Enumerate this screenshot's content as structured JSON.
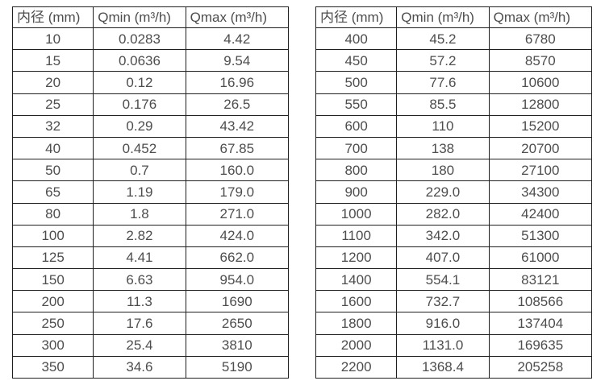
{
  "colors": {
    "background": "#ffffff",
    "border": "#1f1f1f",
    "text": "#4d4d4d"
  },
  "tables": [
    {
      "id": "flow-rate-table-small-diameters",
      "headers": [
        "内径 (mm)",
        "Qmin (m³/h)",
        "Qmax (m³/h)"
      ],
      "rows": [
        [
          "10",
          "0.0283",
          "4.42"
        ],
        [
          "15",
          "0.0636",
          "9.54"
        ],
        [
          "20",
          "0.12",
          "16.96"
        ],
        [
          "25",
          "0.176",
          "26.5"
        ],
        [
          "32",
          "0.29",
          "43.42"
        ],
        [
          "40",
          "0.452",
          "67.85"
        ],
        [
          "50",
          "0.7",
          "160.0"
        ],
        [
          "65",
          "1.19",
          "179.0"
        ],
        [
          "80",
          "1.8",
          "271.0"
        ],
        [
          "100",
          "2.82",
          "424.0"
        ],
        [
          "125",
          "4.41",
          "662.0"
        ],
        [
          "150",
          "6.63",
          "954.0"
        ],
        [
          "200",
          "11.3",
          "1690"
        ],
        [
          "250",
          "17.6",
          "2650"
        ],
        [
          "300",
          "25.4",
          "3810"
        ],
        [
          "350",
          "34.6",
          "5190"
        ]
      ]
    },
    {
      "id": "flow-rate-table-large-diameters",
      "headers": [
        "内径 (mm)",
        "Qmin (m³/h)",
        "Qmax (m³/h)"
      ],
      "rows": [
        [
          "400",
          "45.2",
          "6780"
        ],
        [
          "450",
          "57.2",
          "8570"
        ],
        [
          "500",
          "77.6",
          "10600"
        ],
        [
          "550",
          "85.5",
          "12800"
        ],
        [
          "600",
          "110",
          "15200"
        ],
        [
          "700",
          "138",
          "20700"
        ],
        [
          "800",
          "180",
          "27100"
        ],
        [
          "900",
          "229.0",
          "34300"
        ],
        [
          "1000",
          "282.0",
          "42400"
        ],
        [
          "1100",
          "342.0",
          "51300"
        ],
        [
          "1200",
          "407.0",
          "61000"
        ],
        [
          "1400",
          "554.1",
          "83121"
        ],
        [
          "1600",
          "732.7",
          "108566"
        ],
        [
          "1800",
          "916.0",
          "137404"
        ],
        [
          "2000",
          "1131.0",
          "169635"
        ],
        [
          "2200",
          "1368.4",
          "205258"
        ]
      ]
    }
  ]
}
